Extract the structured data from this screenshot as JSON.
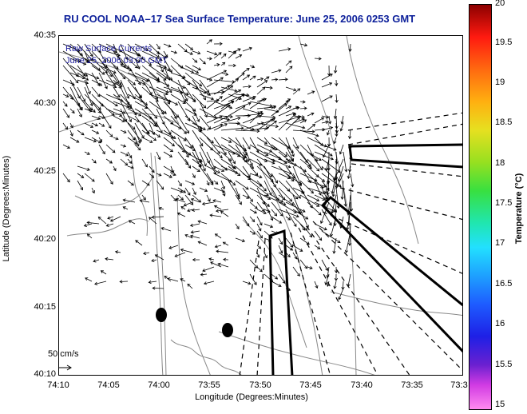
{
  "title": "RU COOL   NOAA–17  Sea Surface Temperature:  June 25, 2006 0253 GMT",
  "inset": {
    "line1": "Raw Surface Currents",
    "line2": "June 25, 2006 03:00 GMT"
  },
  "axes": {
    "xlabel": "Longitude (Degrees:Minutes)",
    "ylabel": "Latitude (Degrees:Minutes)",
    "xticks": [
      "74:10",
      "74:05",
      "74:00",
      "73:55",
      "73:50",
      "73:45",
      "73:40",
      "73:35",
      "73:3"
    ],
    "yticks": [
      "40:35",
      "40:30",
      "40:25",
      "40:20",
      "40:15",
      "40:10"
    ]
  },
  "colorbar": {
    "label": "Temperature (°C)",
    "ticks": [
      "20",
      "19.5",
      "19",
      "18.5",
      "18",
      "17.5",
      "17",
      "16.5",
      "16",
      "15.5",
      "15"
    ],
    "min": 15,
    "max": 20
  },
  "scale": {
    "label": "50 cm/s"
  },
  "colors": {
    "title": "#0c1f9a",
    "inset_text": "#1a1a9a",
    "contours": "#888888",
    "vectors": "#000000"
  }
}
